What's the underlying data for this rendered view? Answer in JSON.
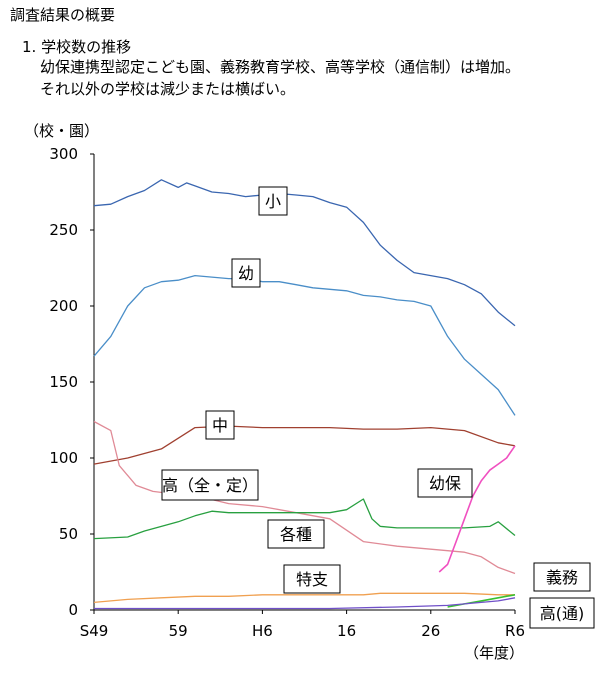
{
  "page": {
    "heading": "調査結果の概要",
    "subheading": "1. 学校数の推移",
    "notes": [
      "幼保連携型認定こども園、義務教育学校、高等学校（通信制）は増加。",
      "それ以外の学校は減少または横ばい。"
    ]
  },
  "chart_data": {
    "type": "line",
    "ylabel": "（校・園）",
    "xlabel": "（年度）",
    "ylim": [
      0,
      300
    ],
    "yticks": [
      0,
      50,
      100,
      150,
      200,
      250,
      300
    ],
    "xticks": [
      "S49",
      "59",
      "H6",
      "16",
      "26",
      "R6"
    ],
    "xlim": [
      1974,
      2024
    ],
    "grid": false,
    "colors": {
      "小": "#3a66b0",
      "幼": "#4a8ec8",
      "中": "#a04030",
      "高(全・定)": "#e08a96",
      "各種": "#28a040",
      "幼保": "#f050c0",
      "特支": "#f0a050",
      "義務": "#38c030",
      "高(通)": "#7050c8"
    },
    "series": [
      {
        "name": "小",
        "label": "小",
        "x": [
          1974,
          1976,
          1978,
          1980,
          1982,
          1984,
          1985,
          1986,
          1988,
          1990,
          1992,
          1994,
          1996,
          1998,
          2000,
          2002,
          2004,
          2006,
          2008,
          2010,
          2012,
          2014,
          2016,
          2018,
          2020,
          2022,
          2024
        ],
        "values": [
          266,
          267,
          272,
          276,
          283,
          278,
          281,
          279,
          275,
          274,
          272,
          273,
          274,
          273,
          272,
          268,
          265,
          255,
          240,
          230,
          222,
          220,
          218,
          214,
          208,
          196,
          187
        ]
      },
      {
        "name": "幼",
        "label": "幼",
        "x": [
          1974,
          1976,
          1978,
          1980,
          1982,
          1984,
          1986,
          1988,
          1990,
          1992,
          1994,
          1996,
          1998,
          2000,
          2002,
          2004,
          2006,
          2008,
          2010,
          2012,
          2014,
          2016,
          2018,
          2020,
          2022,
          2024
        ],
        "values": [
          167,
          180,
          200,
          212,
          216,
          217,
          220,
          219,
          218,
          218,
          216,
          216,
          214,
          212,
          211,
          210,
          207,
          206,
          204,
          203,
          200,
          180,
          165,
          155,
          145,
          128
        ]
      },
      {
        "name": "中",
        "label": "中",
        "x": [
          1974,
          1978,
          1982,
          1986,
          1990,
          1994,
          1998,
          2002,
          2006,
          2010,
          2014,
          2018,
          2022,
          2024
        ],
        "values": [
          96,
          100,
          106,
          120,
          121,
          120,
          120,
          120,
          119,
          119,
          120,
          118,
          110,
          108
        ]
      },
      {
        "name": "高(全・定)",
        "label": "高（全・定）",
        "x": [
          1974,
          1976,
          1977,
          1979,
          1981,
          1984,
          1987,
          1990,
          1994,
          1998,
          2002,
          2006,
          2010,
          2014,
          2018,
          2020,
          2022,
          2024
        ],
        "values": [
          124,
          118,
          95,
          82,
          78,
          76,
          74,
          70,
          68,
          64,
          60,
          45,
          42,
          40,
          38,
          35,
          28,
          24
        ]
      },
      {
        "name": "各種",
        "label": "各種",
        "x": [
          1974,
          1978,
          1980,
          1982,
          1984,
          1986,
          1988,
          1990,
          1994,
          1998,
          2002,
          2004,
          2006,
          2007,
          2008,
          2010,
          2014,
          2018,
          2021,
          2022,
          2024
        ],
        "values": [
          47,
          48,
          52,
          55,
          58,
          62,
          65,
          64,
          64,
          64,
          64,
          66,
          73,
          60,
          55,
          54,
          54,
          54,
          55,
          58,
          49
        ]
      },
      {
        "name": "幼保",
        "label": "幼保",
        "x": [
          2015,
          2016,
          2017,
          2018,
          2019,
          2020,
          2021,
          2022,
          2023,
          2024
        ],
        "values": [
          25,
          30,
          45,
          60,
          75,
          85,
          92,
          96,
          100,
          108
        ]
      },
      {
        "name": "特支",
        "label": "特支",
        "x": [
          1974,
          1978,
          1982,
          1986,
          1990,
          1994,
          1998,
          2002,
          2006,
          2008,
          2010,
          2014,
          2018,
          2022,
          2024
        ],
        "values": [
          5,
          7,
          8,
          9,
          9,
          10,
          10,
          10,
          10,
          11,
          11,
          11,
          11,
          10,
          10
        ]
      },
      {
        "name": "義務",
        "label": "義務",
        "x": [
          2016,
          2018,
          2020,
          2022,
          2024
        ],
        "values": [
          2,
          4,
          6,
          8,
          10
        ]
      },
      {
        "name": "高(通)",
        "label": "高(通)",
        "x": [
          1974,
          1990,
          2002,
          2010,
          2016,
          2018,
          2020,
          2022,
          2024
        ],
        "values": [
          1,
          1,
          1,
          2,
          3,
          4,
          5,
          6,
          8
        ]
      }
    ]
  }
}
